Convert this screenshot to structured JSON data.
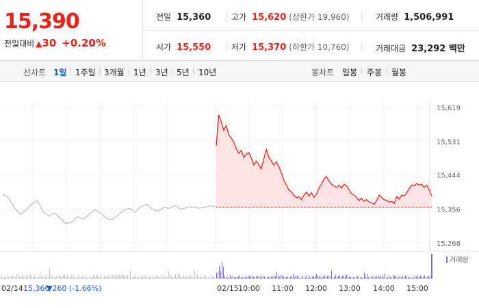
{
  "quote": {
    "price": "15,390",
    "change_label": "전일대비",
    "change_arrow": "▲",
    "change_value": "30",
    "change_pct": "+0.20%"
  },
  "stats": {
    "prev_close": {
      "label": "전일",
      "value": "15,360"
    },
    "open": {
      "label": "시가",
      "value": "15,550"
    },
    "high": {
      "label": "고가",
      "value": "15,620"
    },
    "upper_limit": "(상한가 19,960)",
    "low": {
      "label": "저가",
      "value": "15,370"
    },
    "lower_limit": "(하한가 10,760)",
    "volume": {
      "label": "거래량",
      "value": "1,506,991"
    },
    "trade_amount": {
      "label": "거래대금",
      "value": "23,292 백만"
    }
  },
  "tabs": {
    "line_label": "선차트",
    "line_items": [
      "1일",
      "1주일",
      "3개월",
      "1년",
      "3년",
      "5년",
      "10년"
    ],
    "active": "1일",
    "candle_label": "봉차트",
    "candle_items": [
      "일봉",
      "주봉",
      "월봉"
    ]
  },
  "colors": {
    "up": "#e8211b",
    "down": "#1b5ec8",
    "prev_line": "#bbbbbb",
    "fill": "#fde3e3",
    "volume_today": "#7b6fb6",
    "volume_prev": "#c6c6c6"
  },
  "chart_data": {
    "type": "line",
    "title": "",
    "ylim": [
      15268,
      15619
    ],
    "y_ticks": [
      "15,619",
      "15,531",
      "15,444",
      "15,356",
      "15,268"
    ],
    "reference_line": 15360,
    "prev_session": {
      "date": "02/14",
      "close_text": "15,360",
      "change_text": "▼260 (-1.66%)",
      "values": [
        15395,
        15385,
        15360,
        15342,
        15352,
        15368,
        15378,
        15350,
        15338,
        15346,
        15332,
        15318,
        15322,
        15336,
        15330,
        15342,
        15354,
        15346,
        15332,
        15328,
        15340,
        15352,
        15358,
        15348,
        15362,
        15368,
        15356,
        15350,
        15360,
        15358,
        15365,
        15355,
        15360,
        15362,
        15358,
        15360,
        15364,
        15362
      ]
    },
    "today_session": {
      "date": "02/15",
      "x_labels": [
        "10:00",
        "11:00",
        "12:00",
        "13:00",
        "14:00",
        "15:00"
      ],
      "values": [
        15520,
        15600,
        15582,
        15560,
        15572,
        15548,
        15540,
        15530,
        15512,
        15500,
        15508,
        15490,
        15498,
        15502,
        15488,
        15470,
        15480,
        15470,
        15460,
        15486,
        15510,
        15490,
        15480,
        15470,
        15478,
        15466,
        15450,
        15430,
        15418,
        15405,
        15400,
        15392,
        15385,
        15388,
        15380,
        15392,
        15400,
        15390,
        15398,
        15386,
        15394,
        15410,
        15420,
        15434,
        15440,
        15428,
        15420,
        15416,
        15412,
        15418,
        15410,
        15420,
        15416,
        15406,
        15396,
        15392,
        15386,
        15378,
        15384,
        15376,
        15380,
        15374,
        15372,
        15368,
        15378,
        15392,
        15386,
        15380,
        15378,
        15374,
        15376,
        15370,
        15388,
        15382,
        15392,
        15390,
        15398,
        15408,
        15418,
        15416,
        15422,
        15418,
        15420,
        15412,
        15418,
        15406,
        15390
      ]
    },
    "volume_label": "거래량"
  }
}
